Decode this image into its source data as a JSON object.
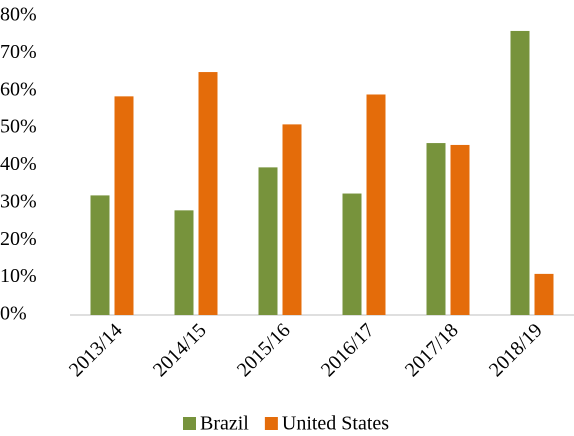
{
  "chart_data": {
    "type": "bar",
    "categories": [
      "2013/14",
      "2014/15",
      "2015/16",
      "2016/17",
      "2017/18",
      "2018/19"
    ],
    "series": [
      {
        "name": "Brazil",
        "color": "#77933c",
        "values": [
          32,
          28,
          39.5,
          32.5,
          46,
          76
        ]
      },
      {
        "name": "United States",
        "color": "#e46c0a",
        "values": [
          58.5,
          65,
          51,
          59,
          45.5,
          11
        ]
      }
    ],
    "ylim": [
      0,
      80
    ],
    "yticks": [
      {
        "value": 0,
        "label": "0%"
      },
      {
        "value": 10,
        "label": "10%"
      },
      {
        "value": 20,
        "label": "20%"
      },
      {
        "value": 30,
        "label": "30%"
      },
      {
        "value": 40,
        "label": "40%"
      },
      {
        "value": 50,
        "label": "50%"
      },
      {
        "value": 60,
        "label": "60%"
      },
      {
        "value": 70,
        "label": "70%"
      },
      {
        "value": 80,
        "label": "80%"
      }
    ],
    "grid": false,
    "legend": "bottom"
  }
}
